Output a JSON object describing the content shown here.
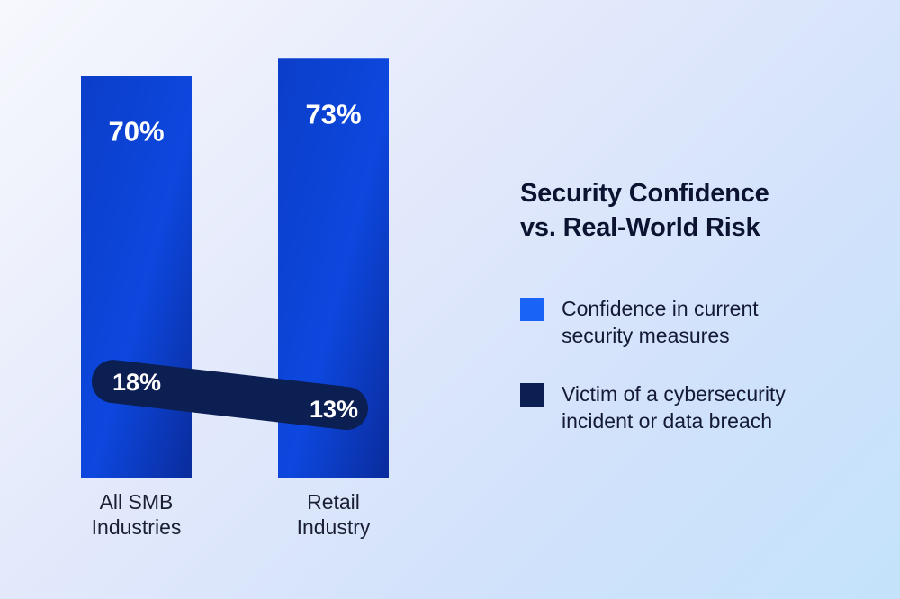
{
  "chart_data": {
    "type": "bar",
    "title": "Security Confidence vs. Real-World Risk",
    "title_lines": [
      "Security Confidence",
      "vs. Real-World Risk"
    ],
    "categories": [
      {
        "lines": [
          "All SMB",
          "Industries"
        ]
      },
      {
        "lines": [
          "Retail",
          "Industry"
        ]
      }
    ],
    "series": [
      {
        "name": "Confidence in current security measures",
        "legend_lines": [
          "Confidence in current",
          "security measures"
        ],
        "values": [
          70,
          73
        ],
        "labels": [
          "70%",
          "73%"
        ],
        "color": "#0a3ec8",
        "swatch_color": "#1a64f5",
        "mark": "bar"
      },
      {
        "name": "Victim of a cybersecurity incident or data breach",
        "legend_lines": [
          "Victim of a cybersecurity",
          "incident or data breach"
        ],
        "values": [
          18,
          13
        ],
        "labels": [
          "18%",
          "13%"
        ],
        "color": "#0c1f52",
        "mark": "pill-line"
      }
    ],
    "ylim": [
      0,
      100
    ],
    "unit": "%",
    "grid": false,
    "legend_position": "right"
  }
}
